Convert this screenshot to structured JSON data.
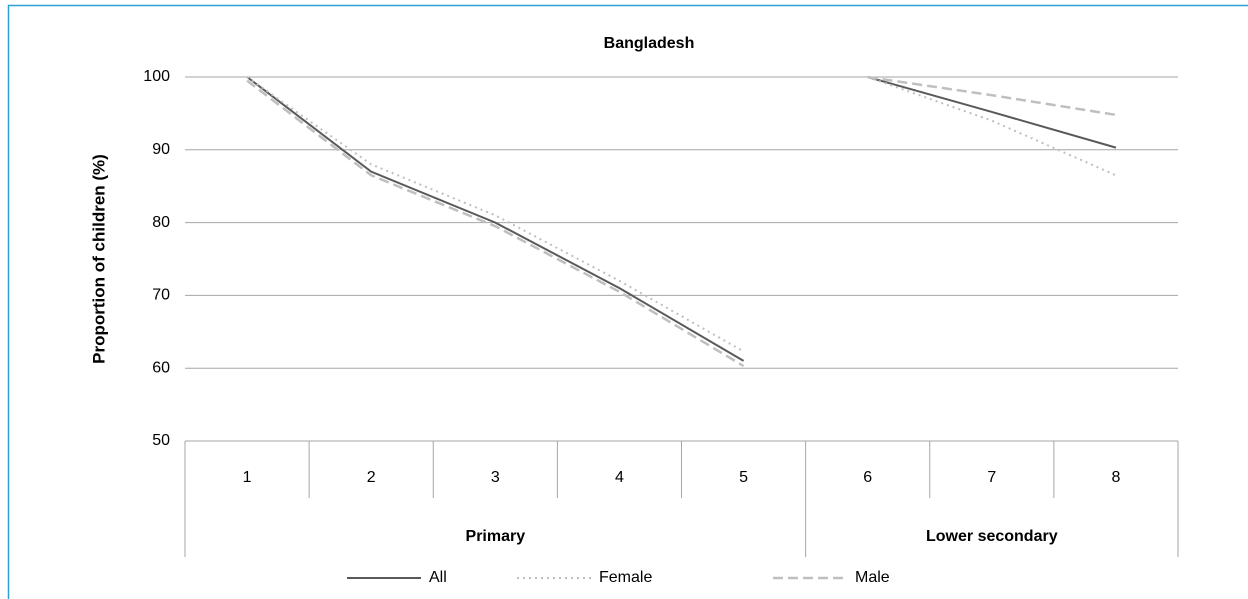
{
  "chart_data": {
    "type": "line",
    "title": "Bangladesh",
    "y_label": "Proportion of children (%)",
    "categories": [
      "1",
      "2",
      "3",
      "4",
      "5",
      "6",
      "7",
      "8"
    ],
    "groups": [
      {
        "label": "Primary",
        "count": 5
      },
      {
        "label": "Lower secondary",
        "count": 3
      }
    ],
    "series": [
      {
        "name": "All",
        "color": "#595959",
        "style": "solid",
        "values": [
          100,
          87,
          80,
          71,
          61,
          100,
          95.2,
          90.3
        ]
      },
      {
        "name": "Female",
        "color": "#bfbfbf",
        "style": "dotted",
        "values": [
          100,
          88,
          81,
          72,
          62.3,
          100,
          94,
          86.5
        ]
      },
      {
        "name": "Male",
        "color": "#bfbfbf",
        "style": "dashed",
        "values": [
          99.5,
          86.5,
          79.5,
          70.5,
          60.3,
          100,
          97.5,
          94.8
        ]
      }
    ],
    "ylim": [
      50,
      100
    ],
    "yticks": [
      50,
      60,
      70,
      80,
      90,
      100
    ],
    "grid": true
  }
}
